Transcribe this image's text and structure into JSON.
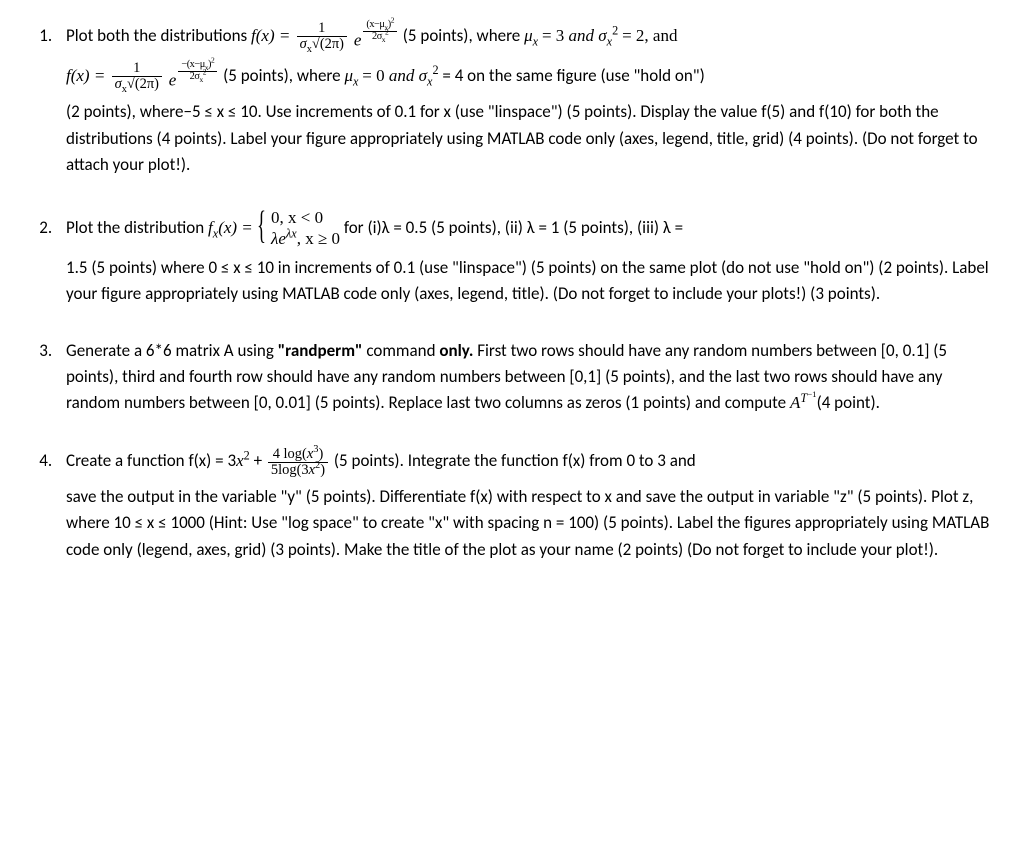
{
  "q1": {
    "lead": "Plot both the distributions ",
    "fx_eq": "f(x) = ",
    "pts1": " (5 points), where ",
    "params1_a": "μ",
    "params1_b": " = 3 ",
    "params1_and": "and ",
    "params1_c": "σ",
    "params1_d": " = 2, and",
    "cont_fx": "f(x) = ",
    "pts2": " (5 points), where ",
    "params2_a": "μ",
    "params2_b": " = 0 ",
    "params2_and": "and ",
    "params2_c": "σ",
    "params2_d": " = 4 on the same figure (use \"hold on\")",
    "rest": "(2 points), where−5 ≤ x ≤ 10. Use increments of 0.1 for x (use \"linspace\") (5 points).  Display the value f(5) and f(10) for both the distributions (4 points). Label your figure appropriately using MATLAB code only (axes, legend, title, grid) (4 points). (Do not forget to attach your plot!).",
    "frac_num": "1",
    "frac_den_sigma": "σ",
    "frac_den_sqrt": "√(2π)",
    "exp_e": "e",
    "exp_num_pos": "(x−μ",
    "exp_num_neg": "−(x−μ",
    "exp_num_tail": ")",
    "exp_num_sq": "2",
    "exp_den": "2σ",
    "exp_den_sq": "2",
    "sub_x": "x"
  },
  "q2": {
    "lead": "Plot the distribution ",
    "fx": "f",
    "sub_x": "x",
    "eq": "(x) = ",
    "case_top": "0,  x < 0",
    "case_bot_a": "λe",
    "case_bot_exp": "λx",
    "case_bot_b": ",  x ≥ 0",
    "after_case": " for (i)λ = 0.5 (5 points), (ii) λ = 1 (5 points), (iii) λ =",
    "rest": "1.5 (5 points) where 0 ≤ x ≤ 10 in increments of 0.1 (use \"linspace\") (5 points) on the same plot (do not use \"hold on\") (2 points). Label your figure appropriately using MATLAB code only (axes, legend, title). (Do not forget to include your plots!) (3 points)."
  },
  "q3": {
    "lead_a": "Generate a 6*6 matrix A using ",
    "bold1": "\"randperm\"",
    "lead_b": " command ",
    "bold2": "only.",
    "lead_c": " First two rows should have any random numbers between [0, 0.1] (5 points), third and fourth row should have any random numbers between [0,1] (5 points), and the last two rows should have any random numbers between [0, 0.01] (5 points). Replace last two columns as zeros (1 points) and compute ",
    "AT": "A",
    "T": "T",
    "neg1": "−1",
    "tail": "(4 point)."
  },
  "q4": {
    "lead": "Create a function f(x) = 3",
    "x2": "x",
    "sq": "2",
    "plus": " + ",
    "num_a": "4 log(",
    "num_b": "x",
    "num_exp": "3",
    "num_c": ")",
    "den_a": "5log(3",
    "den_b": "x",
    "den_exp": "2",
    "den_c": ")",
    "after_frac": " (5 points). Integrate the function f(x) from 0 to 3 and",
    "rest": "save the output in the variable \"y\" (5 points). Differentiate f(x) with respect to x and save the output in variable \"z\" (5 points). Plot z, where 10 ≤ x ≤  1000 (Hint: Use \"log space\" to create \"x\" with spacing n = 100) (5 points). Label the figures appropriately using MATLAB code only (legend, axes, grid) (3 points). Make the title of the plot as your name (2 points) (Do not forget to include your plot!)."
  }
}
